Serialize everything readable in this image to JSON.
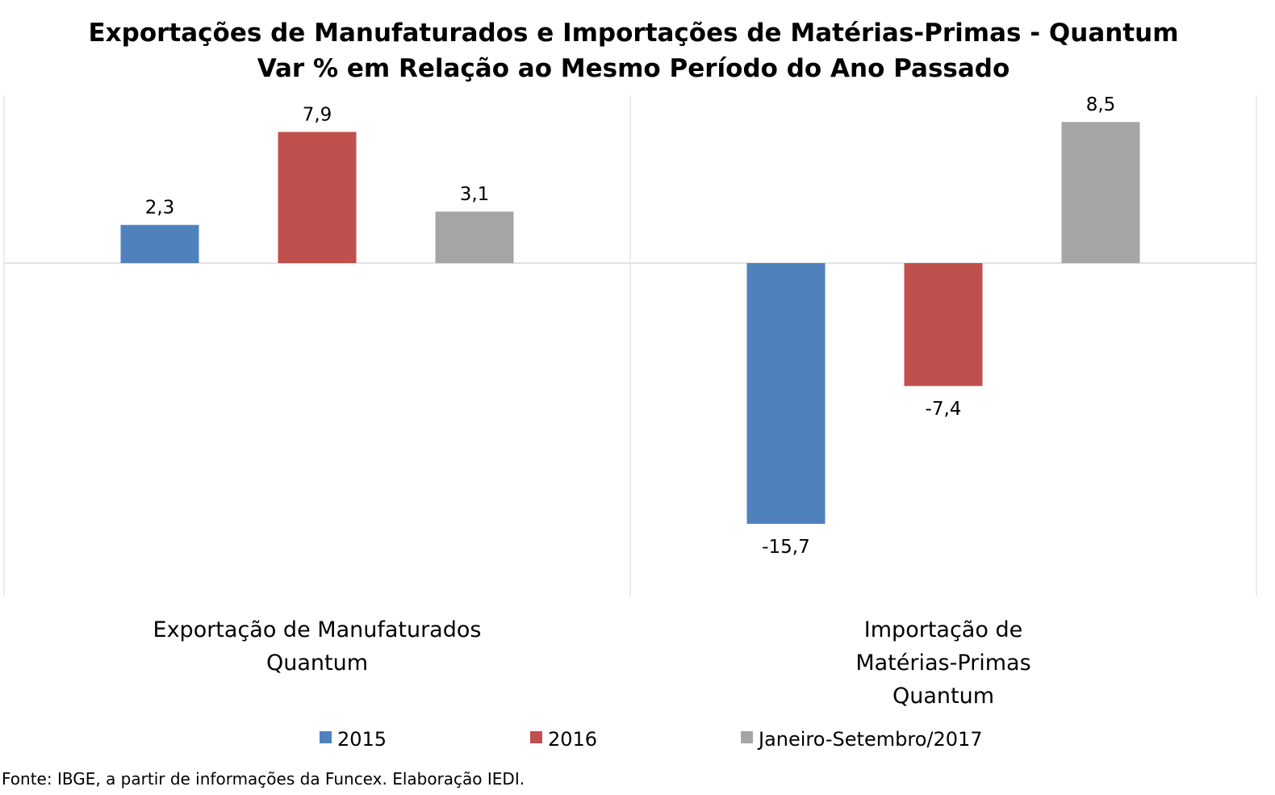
{
  "chart_data": {
    "type": "bar",
    "title": [
      "Exportações de Manufaturados e Importações de Matérias-Primas - Quantum",
      "Var % em Relação ao Mesmo Período do Ano Passado"
    ],
    "categories": [
      [
        "Exportação de Manufaturados",
        "Quantum"
      ],
      [
        "Importação de",
        "Matérias-Primas",
        "Quantum"
      ]
    ],
    "series": [
      {
        "name": "2015",
        "color": "#4f81bd",
        "values": [
          2.3,
          -15.7
        ],
        "labels": [
          "2,3",
          "-15,7"
        ]
      },
      {
        "name": "2016",
        "color": "#c0504d",
        "values": [
          7.9,
          -7.4
        ],
        "labels": [
          "7,9",
          "-7,4"
        ]
      },
      {
        "name": "Janeiro-Setembro/2017",
        "color": "#a5a5a5",
        "values": [
          3.1,
          8.5
        ],
        "labels": [
          "3,1",
          "8,5"
        ]
      }
    ],
    "ylim": [
      -20,
      10
    ],
    "grid": false,
    "legend": "bottom",
    "source": "Fonte: IBGE, a partir de  informações da Funcex. Elaboração IEDI."
  }
}
